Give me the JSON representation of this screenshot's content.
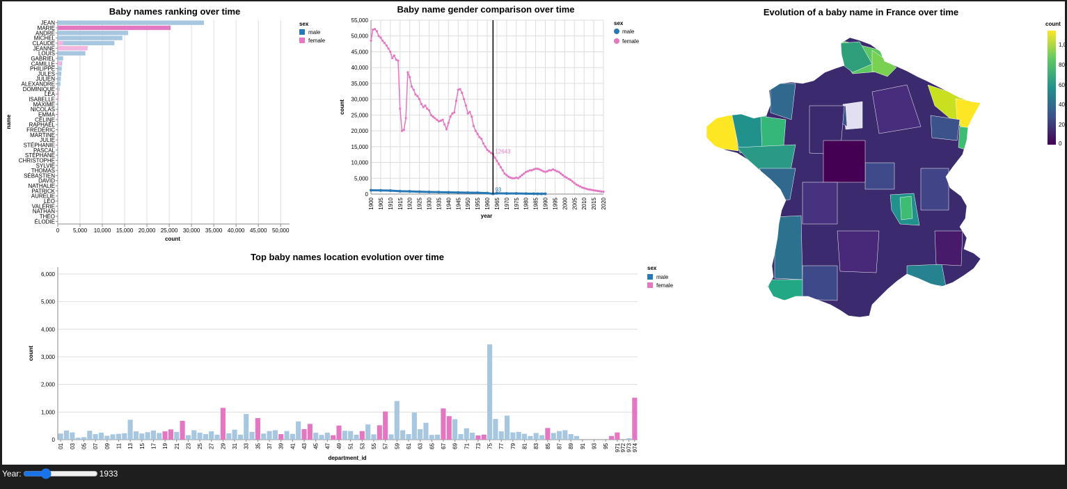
{
  "slider": {
    "label": "Year:",
    "value": 1933,
    "min": 1900,
    "max": 2020
  },
  "colors": {
    "male": "#2878b5",
    "female": "#e377c2",
    "male_light": "#a6c7df",
    "female_light": "#f2b6e0"
  },
  "ranking": {
    "title": "Baby names ranking over time",
    "xlabel": "count",
    "ylabel": "name",
    "legend": {
      "title": "sex",
      "items": [
        "male",
        "female"
      ]
    }
  },
  "gender": {
    "title": "Baby name gender comparison over time",
    "xlabel": "year",
    "ylabel": "count",
    "legend": {
      "title": "sex",
      "items": [
        "male",
        "female"
      ]
    },
    "female_label": "12643",
    "male_label": "93"
  },
  "dept": {
    "title": "Top baby names location evolution over time",
    "xlabel": "department_id",
    "ylabel": "count",
    "legend": {
      "title": "sex",
      "items": [
        "male",
        "female"
      ]
    }
  },
  "map": {
    "title": "Evolution of a baby name in France over time",
    "legend_title": "count",
    "legend_ticks": [
      "1,0",
      "800",
      "600",
      "400",
      "200",
      "0"
    ]
  },
  "chart_data": [
    {
      "type": "bar",
      "title": "Baby names ranking over time",
      "xlabel": "count",
      "ylabel": "name",
      "xlim": [
        0,
        52000
      ],
      "xticks": [
        0,
        5000,
        10000,
        15000,
        20000,
        25000,
        30000,
        35000,
        40000,
        45000,
        50000
      ],
      "categories": [
        "JEAN",
        "MARIE",
        "ANDRÉ",
        "MICHEL",
        "CLAUDE",
        "JEANNE",
        "LOUIS",
        "GABRIEL",
        "CAMILLE",
        "PHILIPPE",
        "JULES",
        "JULIEN",
        "ALEXANDRE",
        "DOMINIQUE",
        "LÉA",
        "ISABELLE",
        "MAXIME",
        "NICOLAS",
        "EMMA",
        "CÉLINE",
        "RAPHAËL",
        "FRÉDÉRIC",
        "MARTINE",
        "JULIE",
        "STÉPHANIE",
        "PASCAL",
        "STÉPHANE",
        "CHRISTOPHE",
        "SYLVIE",
        "THOMAS",
        "SÉBASTIEN",
        "DAVID",
        "NATHALIE",
        "PATRICK",
        "AURÉLIE",
        "LÉO",
        "VALÉRIE",
        "NATHAN",
        "THÉO",
        "ÉLODIE"
      ],
      "series": [
        {
          "name": "male",
          "values": [
            32800,
            0,
            15800,
            14500,
            12700,
            0,
            6200,
            1200,
            1000,
            900,
            800,
            700,
            600,
            400,
            0,
            0,
            150,
            150,
            0,
            0,
            100,
            100,
            0,
            0,
            0,
            100,
            100,
            80,
            0,
            80,
            60,
            60,
            0,
            60,
            0,
            40,
            0,
            40,
            40,
            0
          ]
        },
        {
          "name": "female",
          "values": [
            0,
            25300,
            0,
            0,
            1200,
            6700,
            0,
            0,
            800,
            0,
            0,
            0,
            0,
            200,
            300,
            250,
            0,
            0,
            200,
            150,
            0,
            0,
            100,
            100,
            100,
            0,
            0,
            0,
            80,
            0,
            0,
            0,
            80,
            0,
            60,
            0,
            60,
            0,
            0,
            40
          ]
        }
      ],
      "highlight": {
        "MARIE": 25300
      }
    },
    {
      "type": "line",
      "title": "Baby name gender comparison over time",
      "xlabel": "year",
      "ylabel": "count",
      "ylim": [
        0,
        55000
      ],
      "xlim": [
        1900,
        2020
      ],
      "marker_year": 1963,
      "x_female": [
        1900,
        1901,
        1902,
        1903,
        1904,
        1905,
        1906,
        1907,
        1908,
        1909,
        1910,
        1911,
        1912,
        1913,
        1914,
        1915,
        1916,
        1917,
        1918,
        1919,
        1920,
        1921,
        1922,
        1923,
        1924,
        1925,
        1926,
        1927,
        1928,
        1929,
        1930,
        1931,
        1932,
        1933,
        1934,
        1935,
        1936,
        1937,
        1938,
        1939,
        1940,
        1941,
        1942,
        1943,
        1944,
        1945,
        1946,
        1947,
        1948,
        1949,
        1950,
        1951,
        1952,
        1953,
        1954,
        1955,
        1956,
        1957,
        1958,
        1959,
        1960,
        1961,
        1962,
        1963,
        1964,
        1965,
        1966,
        1967,
        1968,
        1969,
        1970,
        1971,
        1972,
        1973,
        1974,
        1975,
        1976,
        1977,
        1978,
        1979,
        1980,
        1981,
        1982,
        1983,
        1984,
        1985,
        1986,
        1987,
        1988,
        1989,
        1990,
        1991,
        1992,
        1993,
        1994,
        1995,
        1996,
        1997,
        1998,
        1999,
        2000,
        2001,
        2002,
        2003,
        2004,
        2005,
        2006,
        2007,
        2008,
        2009,
        2010,
        2011,
        2012,
        2013,
        2014,
        2015,
        2016,
        2017,
        2018,
        2019,
        2020
      ],
      "series": [
        {
          "name": "female",
          "values": [
            48500,
            52000,
            52200,
            51500,
            50000,
            49500,
            48500,
            47800,
            47000,
            46000,
            45000,
            43000,
            43800,
            42500,
            42200,
            27000,
            20000,
            20300,
            24000,
            38500,
            37000,
            34000,
            33000,
            31500,
            31000,
            30000,
            28500,
            27500,
            28000,
            27000,
            26500,
            25000,
            24500,
            24000,
            23500,
            23000,
            23200,
            23500,
            22000,
            20500,
            22500,
            24500,
            25500,
            25800,
            29500,
            33000,
            33200,
            32000,
            30000,
            28000,
            25500,
            26000,
            24500,
            21500,
            20000,
            19000,
            18000,
            17500,
            16000,
            15000,
            14000,
            13500,
            13000,
            12643,
            11500,
            10500,
            9500,
            8500,
            7500,
            6500,
            6000,
            5500,
            5200,
            5000,
            5000,
            5200,
            5000,
            5500,
            6000,
            6500,
            7000,
            7200,
            7500,
            7500,
            7800,
            8000,
            8000,
            7800,
            7500,
            7200,
            7000,
            7200,
            7500,
            7500,
            7800,
            7500,
            7200,
            7000,
            6500,
            6000,
            5500,
            5200,
            4800,
            4500,
            4000,
            3500,
            3000,
            2700,
            2400,
            2100,
            1900,
            1700,
            1500,
            1400,
            1300,
            1200,
            1100,
            1000,
            900,
            800,
            750
          ]
        },
        {
          "name": "male",
          "points": [
            [
              1900,
              1200
            ],
            [
              1905,
              1150
            ],
            [
              1910,
              1100
            ],
            [
              1915,
              900
            ],
            [
              1920,
              850
            ],
            [
              1925,
              750
            ],
            [
              1930,
              650
            ],
            [
              1935,
              600
            ],
            [
              1940,
              550
            ],
            [
              1945,
              500
            ],
            [
              1950,
              450
            ],
            [
              1955,
              400
            ],
            [
              1960,
              300
            ],
            [
              1963,
              93
            ],
            [
              1965,
              250
            ],
            [
              1970,
              200
            ],
            [
              1975,
              180
            ],
            [
              1980,
              150
            ],
            [
              1984,
              100
            ],
            [
              1986,
              80
            ],
            [
              1988,
              70
            ],
            [
              1990,
              90
            ]
          ]
        }
      ]
    },
    {
      "type": "bar",
      "title": "Top baby names location evolution over time",
      "xlabel": "department_id",
      "ylabel": "count",
      "ylim": [
        0,
        6250
      ],
      "yticks": [
        0,
        1000,
        2000,
        3000,
        4000,
        5000,
        6000
      ],
      "categories": [
        "01",
        "02",
        "03",
        "04",
        "05",
        "06",
        "07",
        "08",
        "09",
        "10",
        "11",
        "12",
        "13",
        "14",
        "15",
        "16",
        "17",
        "18",
        "19",
        "20",
        "21",
        "22",
        "23",
        "24",
        "25",
        "26",
        "27",
        "28",
        "29",
        "30",
        "31",
        "32",
        "33",
        "34",
        "35",
        "36",
        "37",
        "38",
        "39",
        "40",
        "41",
        "42",
        "43",
        "44",
        "45",
        "46",
        "47",
        "48",
        "49",
        "50",
        "51",
        "52",
        "53",
        "54",
        "55",
        "56",
        "57",
        "58",
        "59",
        "60",
        "61",
        "62",
        "63",
        "64",
        "65",
        "66",
        "67",
        "68",
        "69",
        "70",
        "71",
        "72",
        "73",
        "74",
        "75",
        "76",
        "77",
        "78",
        "79",
        "80",
        "81",
        "82",
        "83",
        "84",
        "85",
        "86",
        "87",
        "88",
        "89",
        "90",
        "91",
        "92",
        "93",
        "94",
        "95",
        "96",
        "971",
        "972",
        "973",
        "974"
      ],
      "values": [
        220,
        330,
        260,
        70,
        90,
        320,
        200,
        250,
        140,
        190,
        210,
        230,
        720,
        300,
        220,
        270,
        330,
        240,
        300,
        370,
        280,
        680,
        160,
        340,
        250,
        200,
        300,
        180,
        1150,
        230,
        360,
        180,
        930,
        280,
        780,
        220,
        310,
        340,
        200,
        310,
        210,
        660,
        380,
        570,
        250,
        170,
        250,
        160,
        510,
        320,
        310,
        180,
        310,
        550,
        190,
        520,
        1020,
        190,
        1400,
        340,
        200,
        980,
        380,
        610,
        170,
        180,
        1130,
        850,
        740,
        200,
        410,
        250,
        150,
        180,
        3450,
        750,
        300,
        870,
        260,
        280,
        210,
        130,
        240,
        160,
        420,
        240,
        310,
        340,
        200,
        130,
        0,
        0,
        0,
        0,
        0,
        130,
        260,
        0,
        50,
        1520
      ],
      "sex": [
        "m",
        "m",
        "m",
        "m",
        "m",
        "m",
        "m",
        "m",
        "m",
        "m",
        "m",
        "m",
        "m",
        "m",
        "m",
        "m",
        "m",
        "m",
        "f",
        "f",
        "m",
        "f",
        "m",
        "m",
        "m",
        "m",
        "m",
        "m",
        "f",
        "m",
        "m",
        "m",
        "m",
        "m",
        "f",
        "m",
        "m",
        "m",
        "f",
        "m",
        "m",
        "m",
        "f",
        "f",
        "m",
        "m",
        "m",
        "f",
        "f",
        "m",
        "m",
        "m",
        "f",
        "m",
        "m",
        "f",
        "f",
        "m",
        "m",
        "m",
        "m",
        "m",
        "m",
        "m",
        "m",
        "m",
        "f",
        "f",
        "m",
        "m",
        "m",
        "m",
        "f",
        "f",
        "m",
        "m",
        "m",
        "m",
        "m",
        "m",
        "m",
        "m",
        "m",
        "m",
        "f",
        "m",
        "m",
        "m",
        "m",
        "m",
        "m",
        "m",
        "m",
        "m",
        "m",
        "f",
        "f",
        "m",
        "m",
        "f"
      ]
    }
  ]
}
